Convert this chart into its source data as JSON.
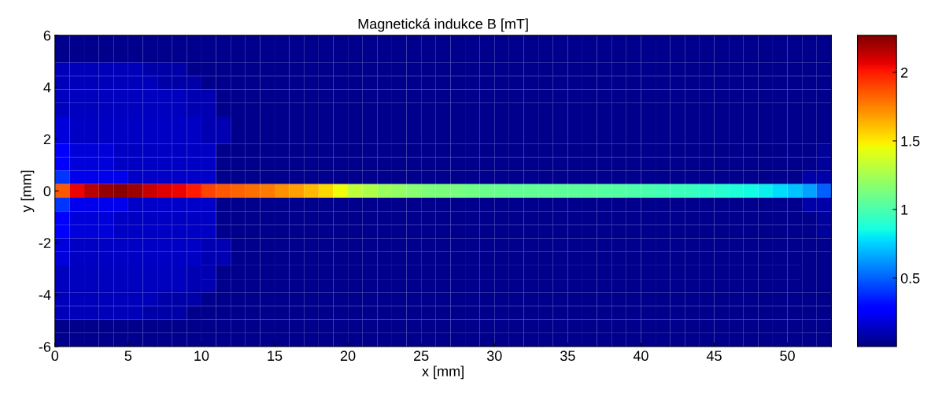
{
  "chart_data": {
    "type": "heatmap",
    "title": "Magnetická indukce B [mT]",
    "xlabel": "x [mm]",
    "ylabel": "y [mm]",
    "cells": [
      [
        0.03,
        0.03,
        0.03,
        0.03,
        0.03,
        0.03,
        0.03,
        0.03,
        0.03,
        0.03,
        0.03,
        0.03,
        0.03,
        0.03,
        0.03,
        0.03,
        0.03,
        0.03,
        0.03,
        0.03,
        0.03,
        0.03,
        0.03,
        0.03,
        0.03,
        0.03,
        0.03,
        0.03,
        0.03,
        0.03,
        0.03,
        0.03,
        0.03,
        0.03,
        0.03,
        0.03,
        0.03,
        0.03,
        0.03,
        0.03,
        0.03,
        0.03,
        0.03,
        0.03,
        0.03,
        0.03,
        0.03,
        0.03,
        0.03,
        0.03,
        0.03,
        0.03,
        0.03
      ],
      [
        0.03,
        0.03,
        0.03,
        0.03,
        0.03,
        0.03,
        0.03,
        0.03,
        0.03,
        0.03,
        0.03,
        0.03,
        0.03,
        0.03,
        0.03,
        0.03,
        0.03,
        0.03,
        0.03,
        0.03,
        0.03,
        0.03,
        0.03,
        0.03,
        0.03,
        0.03,
        0.03,
        0.03,
        0.03,
        0.03,
        0.03,
        0.03,
        0.03,
        0.03,
        0.03,
        0.03,
        0.03,
        0.03,
        0.03,
        0.03,
        0.03,
        0.03,
        0.03,
        0.03,
        0.03,
        0.03,
        0.03,
        0.03,
        0.03,
        0.03,
        0.03,
        0.03,
        0.03
      ],
      [
        0.12,
        0.12,
        0.12,
        0.12,
        0.12,
        0.12,
        0.08,
        0.08,
        0.08,
        0.03,
        0.03,
        0.03,
        0.03,
        0.03,
        0.03,
        0.03,
        0.03,
        0.03,
        0.03,
        0.03,
        0.03,
        0.03,
        0.03,
        0.03,
        0.03,
        0.03,
        0.03,
        0.03,
        0.03,
        0.03,
        0.03,
        0.03,
        0.03,
        0.03,
        0.03,
        0.03,
        0.03,
        0.03,
        0.03,
        0.03,
        0.03,
        0.03,
        0.03,
        0.03,
        0.03,
        0.03,
        0.03,
        0.03,
        0.03,
        0.03,
        0.03,
        0.03,
        0.03
      ],
      [
        0.12,
        0.12,
        0.12,
        0.12,
        0.12,
        0.12,
        0.12,
        0.08,
        0.08,
        0.08,
        0.03,
        0.03,
        0.03,
        0.03,
        0.03,
        0.03,
        0.03,
        0.03,
        0.03,
        0.03,
        0.03,
        0.03,
        0.03,
        0.03,
        0.03,
        0.03,
        0.03,
        0.03,
        0.03,
        0.03,
        0.03,
        0.03,
        0.03,
        0.03,
        0.03,
        0.03,
        0.03,
        0.03,
        0.03,
        0.03,
        0.03,
        0.03,
        0.03,
        0.03,
        0.03,
        0.03,
        0.03,
        0.03,
        0.03,
        0.03,
        0.03,
        0.03,
        0.03
      ],
      [
        0.13,
        0.13,
        0.13,
        0.13,
        0.13,
        0.13,
        0.13,
        0.13,
        0.13,
        0.1,
        0.1,
        0.03,
        0.03,
        0.03,
        0.03,
        0.03,
        0.03,
        0.03,
        0.03,
        0.03,
        0.03,
        0.03,
        0.03,
        0.03,
        0.03,
        0.03,
        0.03,
        0.03,
        0.03,
        0.03,
        0.03,
        0.03,
        0.03,
        0.03,
        0.03,
        0.03,
        0.03,
        0.03,
        0.03,
        0.03,
        0.03,
        0.03,
        0.03,
        0.03,
        0.03,
        0.03,
        0.03,
        0.03,
        0.03,
        0.03,
        0.03,
        0.03,
        0.03
      ],
      [
        0.13,
        0.13,
        0.13,
        0.13,
        0.13,
        0.13,
        0.13,
        0.13,
        0.13,
        0.1,
        0.1,
        0.03,
        0.03,
        0.03,
        0.03,
        0.03,
        0.03,
        0.03,
        0.03,
        0.03,
        0.03,
        0.03,
        0.03,
        0.03,
        0.03,
        0.03,
        0.03,
        0.03,
        0.03,
        0.03,
        0.03,
        0.03,
        0.03,
        0.03,
        0.03,
        0.03,
        0.03,
        0.03,
        0.03,
        0.03,
        0.03,
        0.03,
        0.03,
        0.03,
        0.03,
        0.03,
        0.03,
        0.03,
        0.03,
        0.03,
        0.03,
        0.03,
        0.03
      ],
      [
        0.18,
        0.14,
        0.14,
        0.14,
        0.14,
        0.14,
        0.14,
        0.14,
        0.14,
        0.14,
        0.1,
        0.1,
        0.03,
        0.03,
        0.03,
        0.03,
        0.03,
        0.03,
        0.03,
        0.03,
        0.03,
        0.03,
        0.03,
        0.03,
        0.03,
        0.03,
        0.03,
        0.03,
        0.03,
        0.03,
        0.03,
        0.03,
        0.03,
        0.03,
        0.03,
        0.03,
        0.03,
        0.03,
        0.03,
        0.03,
        0.03,
        0.03,
        0.03,
        0.03,
        0.03,
        0.03,
        0.03,
        0.03,
        0.03,
        0.03,
        0.03,
        0.03,
        0.03
      ],
      [
        0.18,
        0.14,
        0.14,
        0.14,
        0.14,
        0.14,
        0.14,
        0.14,
        0.14,
        0.14,
        0.1,
        0.1,
        0.03,
        0.03,
        0.03,
        0.03,
        0.03,
        0.03,
        0.03,
        0.03,
        0.03,
        0.03,
        0.03,
        0.03,
        0.03,
        0.03,
        0.03,
        0.03,
        0.03,
        0.03,
        0.03,
        0.03,
        0.03,
        0.03,
        0.03,
        0.03,
        0.03,
        0.03,
        0.03,
        0.03,
        0.03,
        0.03,
        0.03,
        0.03,
        0.03,
        0.03,
        0.03,
        0.03,
        0.03,
        0.03,
        0.03,
        0.03,
        0.03
      ],
      [
        0.25,
        0.18,
        0.18,
        0.18,
        0.14,
        0.14,
        0.14,
        0.14,
        0.14,
        0.14,
        0.14,
        0.03,
        0.03,
        0.03,
        0.03,
        0.03,
        0.03,
        0.03,
        0.03,
        0.03,
        0.03,
        0.03,
        0.03,
        0.03,
        0.03,
        0.03,
        0.03,
        0.03,
        0.03,
        0.03,
        0.03,
        0.03,
        0.03,
        0.03,
        0.03,
        0.03,
        0.03,
        0.03,
        0.03,
        0.03,
        0.03,
        0.03,
        0.03,
        0.03,
        0.03,
        0.03,
        0.03,
        0.03,
        0.03,
        0.03,
        0.03,
        0.03,
        0.06
      ],
      [
        0.25,
        0.18,
        0.18,
        0.18,
        0.14,
        0.14,
        0.14,
        0.14,
        0.14,
        0.14,
        0.14,
        0.03,
        0.03,
        0.03,
        0.03,
        0.03,
        0.03,
        0.03,
        0.03,
        0.03,
        0.03,
        0.03,
        0.03,
        0.03,
        0.03,
        0.03,
        0.03,
        0.03,
        0.03,
        0.03,
        0.03,
        0.03,
        0.03,
        0.03,
        0.03,
        0.03,
        0.03,
        0.03,
        0.03,
        0.03,
        0.03,
        0.03,
        0.03,
        0.03,
        0.03,
        0.03,
        0.03,
        0.03,
        0.03,
        0.03,
        0.03,
        0.03,
        0.06
      ],
      [
        0.4,
        0.22,
        0.22,
        0.22,
        0.22,
        0.15,
        0.15,
        0.15,
        0.15,
        0.15,
        0.15,
        0.03,
        0.03,
        0.03,
        0.03,
        0.03,
        0.03,
        0.03,
        0.03,
        0.03,
        0.03,
        0.03,
        0.03,
        0.03,
        0.03,
        0.03,
        0.03,
        0.03,
        0.03,
        0.03,
        0.03,
        0.03,
        0.03,
        0.03,
        0.03,
        0.03,
        0.03,
        0.03,
        0.03,
        0.03,
        0.03,
        0.03,
        0.03,
        0.03,
        0.03,
        0.03,
        0.03,
        0.03,
        0.03,
        0.03,
        0.03,
        0.08,
        0.08
      ],
      [
        1.85,
        2.05,
        2.15,
        2.22,
        2.25,
        2.2,
        2.12,
        2.08,
        2.05,
        2.0,
        1.9,
        1.85,
        1.82,
        1.8,
        1.77,
        1.72,
        1.68,
        1.62,
        1.55,
        1.45,
        1.32,
        1.27,
        1.22,
        1.2,
        1.17,
        1.14,
        1.13,
        1.12,
        1.1,
        1.09,
        1.08,
        1.07,
        1.07,
        1.06,
        1.05,
        1.05,
        1.04,
        1.03,
        1.02,
        1.01,
        1.0,
        0.98,
        0.96,
        0.95,
        0.93,
        0.9,
        0.88,
        0.85,
        0.82,
        0.78,
        0.72,
        0.65,
        0.5
      ],
      [
        0.4,
        0.22,
        0.22,
        0.22,
        0.22,
        0.15,
        0.15,
        0.15,
        0.15,
        0.15,
        0.15,
        0.03,
        0.03,
        0.03,
        0.03,
        0.03,
        0.03,
        0.03,
        0.03,
        0.03,
        0.03,
        0.03,
        0.03,
        0.03,
        0.03,
        0.03,
        0.03,
        0.03,
        0.03,
        0.03,
        0.03,
        0.03,
        0.03,
        0.03,
        0.03,
        0.03,
        0.03,
        0.03,
        0.03,
        0.03,
        0.03,
        0.03,
        0.03,
        0.03,
        0.03,
        0.03,
        0.03,
        0.03,
        0.03,
        0.03,
        0.03,
        0.08,
        0.08
      ],
      [
        0.25,
        0.18,
        0.18,
        0.18,
        0.14,
        0.14,
        0.14,
        0.14,
        0.14,
        0.14,
        0.14,
        0.03,
        0.03,
        0.03,
        0.03,
        0.03,
        0.03,
        0.03,
        0.03,
        0.03,
        0.03,
        0.03,
        0.03,
        0.03,
        0.03,
        0.03,
        0.03,
        0.03,
        0.03,
        0.03,
        0.03,
        0.03,
        0.03,
        0.03,
        0.03,
        0.03,
        0.03,
        0.03,
        0.03,
        0.03,
        0.03,
        0.03,
        0.03,
        0.03,
        0.03,
        0.03,
        0.03,
        0.03,
        0.03,
        0.03,
        0.03,
        0.03,
        0.06
      ],
      [
        0.25,
        0.18,
        0.18,
        0.18,
        0.14,
        0.14,
        0.14,
        0.14,
        0.14,
        0.14,
        0.14,
        0.03,
        0.03,
        0.03,
        0.03,
        0.03,
        0.03,
        0.03,
        0.03,
        0.03,
        0.03,
        0.03,
        0.03,
        0.03,
        0.03,
        0.03,
        0.03,
        0.03,
        0.03,
        0.03,
        0.03,
        0.03,
        0.03,
        0.03,
        0.03,
        0.03,
        0.03,
        0.03,
        0.03,
        0.03,
        0.03,
        0.03,
        0.03,
        0.03,
        0.03,
        0.03,
        0.03,
        0.03,
        0.03,
        0.03,
        0.03,
        0.03,
        0.06
      ],
      [
        0.18,
        0.14,
        0.14,
        0.14,
        0.14,
        0.14,
        0.14,
        0.14,
        0.14,
        0.14,
        0.1,
        0.1,
        0.03,
        0.03,
        0.03,
        0.03,
        0.03,
        0.03,
        0.03,
        0.03,
        0.03,
        0.03,
        0.03,
        0.03,
        0.03,
        0.03,
        0.03,
        0.03,
        0.03,
        0.03,
        0.03,
        0.03,
        0.03,
        0.03,
        0.03,
        0.03,
        0.03,
        0.03,
        0.03,
        0.03,
        0.03,
        0.03,
        0.03,
        0.03,
        0.03,
        0.03,
        0.03,
        0.03,
        0.03,
        0.03,
        0.03,
        0.03,
        0.03
      ],
      [
        0.18,
        0.14,
        0.14,
        0.14,
        0.14,
        0.14,
        0.14,
        0.14,
        0.14,
        0.14,
        0.1,
        0.1,
        0.03,
        0.03,
        0.03,
        0.03,
        0.03,
        0.03,
        0.03,
        0.03,
        0.03,
        0.03,
        0.03,
        0.03,
        0.03,
        0.03,
        0.03,
        0.03,
        0.03,
        0.03,
        0.03,
        0.03,
        0.03,
        0.03,
        0.03,
        0.03,
        0.03,
        0.03,
        0.03,
        0.03,
        0.03,
        0.03,
        0.03,
        0.03,
        0.03,
        0.03,
        0.03,
        0.03,
        0.03,
        0.03,
        0.03,
        0.03,
        0.03
      ],
      [
        0.13,
        0.13,
        0.13,
        0.13,
        0.13,
        0.13,
        0.13,
        0.13,
        0.13,
        0.1,
        0.1,
        0.03,
        0.03,
        0.03,
        0.03,
        0.03,
        0.03,
        0.03,
        0.03,
        0.03,
        0.03,
        0.03,
        0.03,
        0.03,
        0.03,
        0.03,
        0.03,
        0.03,
        0.03,
        0.03,
        0.03,
        0.03,
        0.03,
        0.03,
        0.03,
        0.03,
        0.03,
        0.03,
        0.03,
        0.03,
        0.03,
        0.03,
        0.03,
        0.03,
        0.03,
        0.03,
        0.03,
        0.03,
        0.03,
        0.03,
        0.03,
        0.03,
        0.03
      ],
      [
        0.13,
        0.13,
        0.13,
        0.13,
        0.13,
        0.13,
        0.13,
        0.13,
        0.13,
        0.1,
        0.1,
        0.03,
        0.03,
        0.03,
        0.03,
        0.03,
        0.03,
        0.03,
        0.03,
        0.03,
        0.03,
        0.03,
        0.03,
        0.03,
        0.03,
        0.03,
        0.03,
        0.03,
        0.03,
        0.03,
        0.03,
        0.03,
        0.03,
        0.03,
        0.03,
        0.03,
        0.03,
        0.03,
        0.03,
        0.03,
        0.03,
        0.03,
        0.03,
        0.03,
        0.03,
        0.03,
        0.03,
        0.03,
        0.03,
        0.03,
        0.03,
        0.03,
        0.03
      ],
      [
        0.12,
        0.12,
        0.12,
        0.12,
        0.12,
        0.12,
        0.12,
        0.08,
        0.08,
        0.08,
        0.03,
        0.03,
        0.03,
        0.03,
        0.03,
        0.03,
        0.03,
        0.03,
        0.03,
        0.03,
        0.03,
        0.03,
        0.03,
        0.03,
        0.03,
        0.03,
        0.03,
        0.03,
        0.03,
        0.03,
        0.03,
        0.03,
        0.03,
        0.03,
        0.03,
        0.03,
        0.03,
        0.03,
        0.03,
        0.03,
        0.03,
        0.03,
        0.03,
        0.03,
        0.03,
        0.03,
        0.03,
        0.03,
        0.03,
        0.03,
        0.03,
        0.03,
        0.03
      ],
      [
        0.12,
        0.12,
        0.12,
        0.12,
        0.12,
        0.12,
        0.08,
        0.08,
        0.08,
        0.03,
        0.03,
        0.03,
        0.03,
        0.03,
        0.03,
        0.03,
        0.03,
        0.03,
        0.03,
        0.03,
        0.03,
        0.03,
        0.03,
        0.03,
        0.03,
        0.03,
        0.03,
        0.03,
        0.03,
        0.03,
        0.03,
        0.03,
        0.03,
        0.03,
        0.03,
        0.03,
        0.03,
        0.03,
        0.03,
        0.03,
        0.03,
        0.03,
        0.03,
        0.03,
        0.03,
        0.03,
        0.03,
        0.03,
        0.03,
        0.03,
        0.03,
        0.03,
        0.03
      ],
      [
        0.03,
        0.03,
        0.03,
        0.03,
        0.03,
        0.03,
        0.03,
        0.03,
        0.03,
        0.03,
        0.03,
        0.03,
        0.03,
        0.03,
        0.03,
        0.03,
        0.03,
        0.03,
        0.03,
        0.03,
        0.03,
        0.03,
        0.03,
        0.03,
        0.03,
        0.03,
        0.03,
        0.03,
        0.03,
        0.03,
        0.03,
        0.03,
        0.03,
        0.03,
        0.03,
        0.03,
        0.03,
        0.03,
        0.03,
        0.03,
        0.03,
        0.03,
        0.03,
        0.03,
        0.03,
        0.03,
        0.03,
        0.03,
        0.03,
        0.03,
        0.03,
        0.03,
        0.03
      ],
      [
        0.03,
        0.03,
        0.03,
        0.03,
        0.03,
        0.03,
        0.03,
        0.03,
        0.03,
        0.03,
        0.03,
        0.03,
        0.03,
        0.03,
        0.03,
        0.03,
        0.03,
        0.03,
        0.03,
        0.03,
        0.03,
        0.03,
        0.03,
        0.03,
        0.03,
        0.03,
        0.03,
        0.03,
        0.03,
        0.03,
        0.03,
        0.03,
        0.03,
        0.03,
        0.03,
        0.03,
        0.03,
        0.03,
        0.03,
        0.03,
        0.03,
        0.03,
        0.03,
        0.03,
        0.03,
        0.03,
        0.03,
        0.03,
        0.03,
        0.03,
        0.03,
        0.03,
        0.03
      ]
    ],
    "xlim": [
      0,
      53
    ],
    "xticks": [
      0,
      5,
      10,
      15,
      20,
      25,
      30,
      35,
      40,
      45,
      50
    ],
    "ylim": [
      -6,
      6
    ],
    "yticks": [
      -6,
      -4,
      -2,
      0,
      2,
      4,
      6
    ],
    "clim": [
      0,
      2.27
    ],
    "cticks": [
      0.5,
      1,
      1.5,
      2
    ],
    "grid": false
  }
}
